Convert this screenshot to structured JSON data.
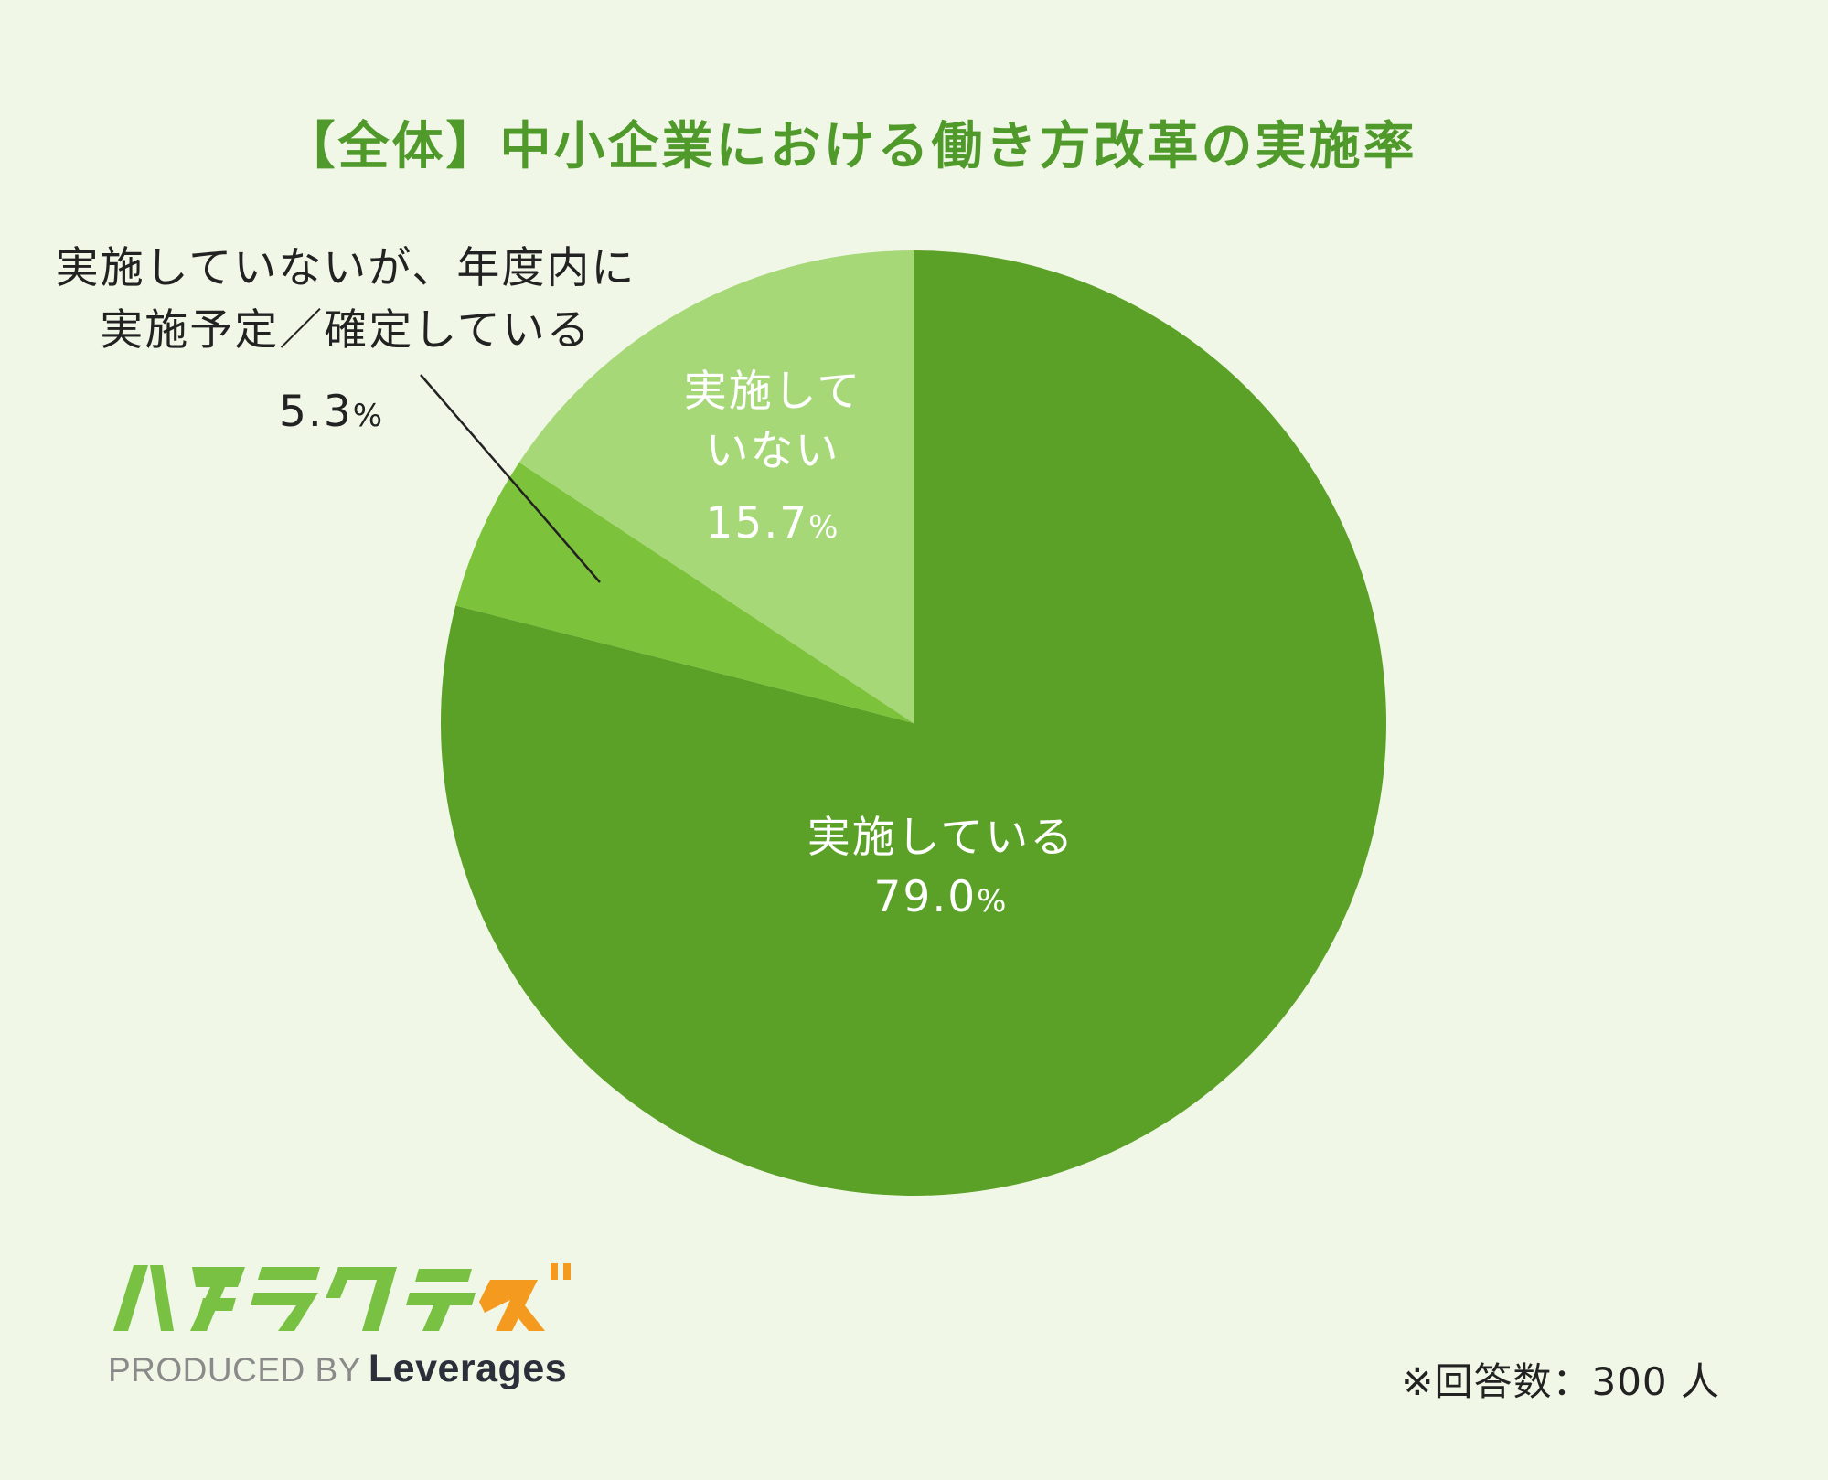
{
  "chart_data": {
    "type": "pie",
    "title": "【全体】中小企業における働き方改革の実施率",
    "slices": [
      {
        "label": "実施している",
        "value": 79.0,
        "display": "79.0",
        "color": "#5ba127"
      },
      {
        "label": "実施していないが、年度内に実施予定／確定している",
        "value": 5.3,
        "display": "5.3",
        "color": "#7cc23a"
      },
      {
        "label": "実施していない",
        "value": 15.7,
        "display": "15.7",
        "color": "#a6d878"
      }
    ],
    "unit": "%",
    "start_angle_deg": 0,
    "direction": "clockwise"
  },
  "labels": {
    "implemented": "実施している",
    "not_implemented_line1": "実施して",
    "not_implemented_line2": "いない",
    "planned_line1": "実施していないが、年度内に",
    "planned_line2": "実施予定／確定している"
  },
  "footer": {
    "logo_text": "ハタラクティブ",
    "produced_by": "PRODUCED BY",
    "company": "Leverages",
    "note": "※回答数：300 人"
  },
  "colors": {
    "background": "#f0f7e6",
    "title": "#4f9a2a",
    "logo_green": "#79c143",
    "logo_orange": "#f49a1f"
  }
}
